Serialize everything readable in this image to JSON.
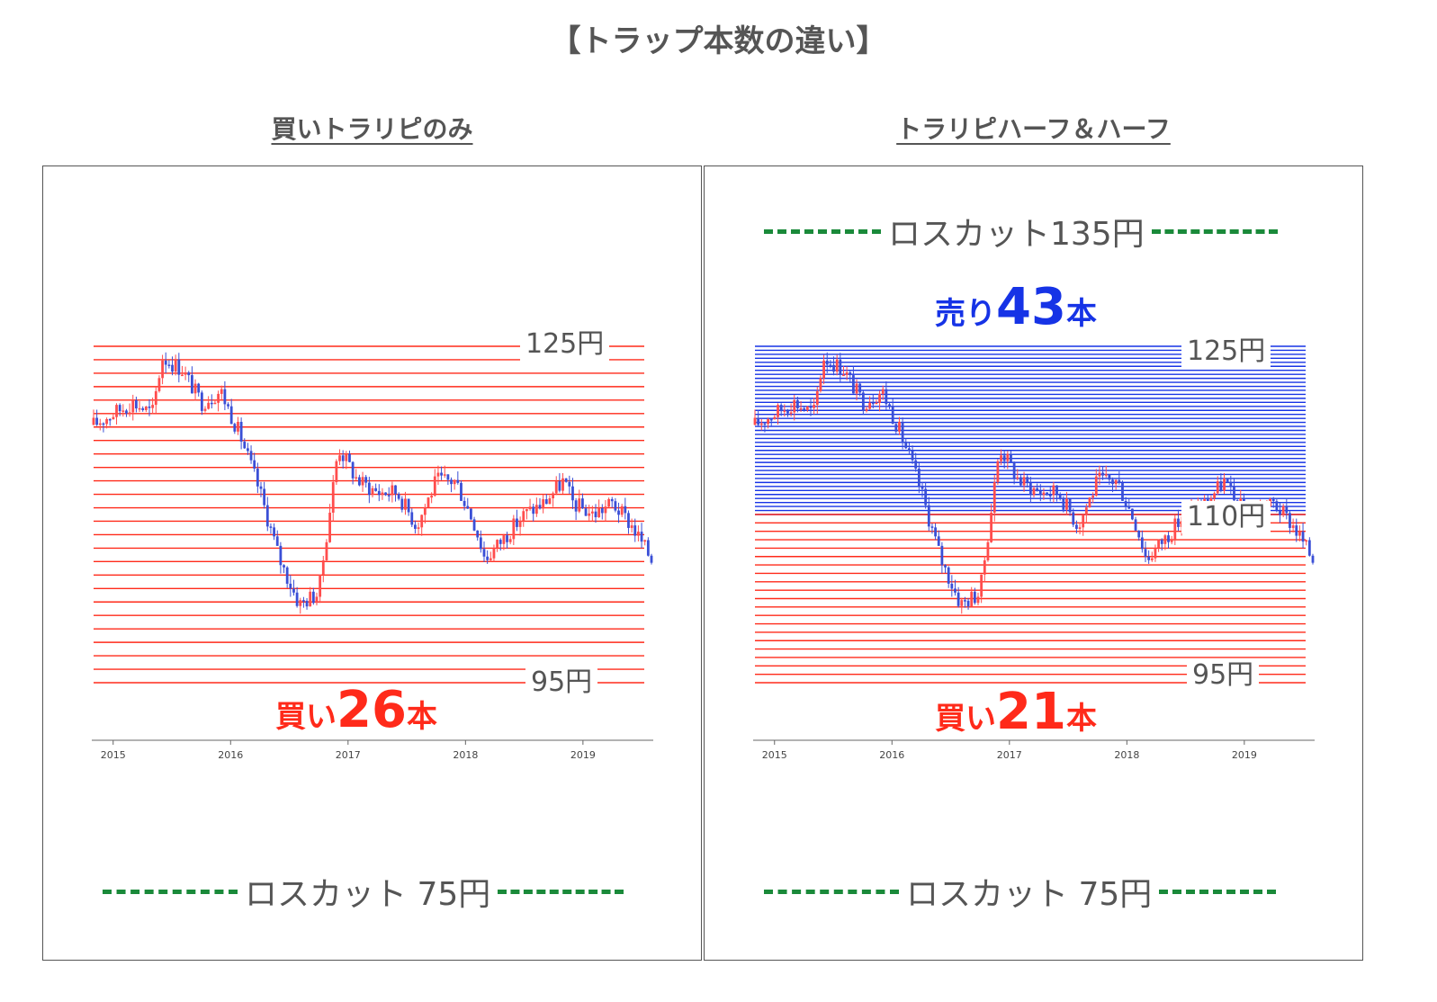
{
  "title": "【トラップ本数の違い】",
  "colors": {
    "buy": "#ff2a1a",
    "sell": "#1633e6",
    "losscut": "#1a8a3a",
    "price_up": "#ff4d4d",
    "price_down": "#3a4fd6"
  },
  "panels": [
    {
      "title": "買いトラリピのみ",
      "price_label_high": "125円",
      "price_label_low": "95円",
      "buy_count_prefix": "買い",
      "buy_count_number": "26",
      "buy_count_suffix": "本",
      "losscut_bottom": "ロスカット 75円"
    },
    {
      "title": "トラリピハーフ＆ハーフ",
      "losscut_top": "ロスカット135円",
      "sell_count_prefix": "売り",
      "sell_count_number": "43",
      "sell_count_suffix": "本",
      "price_label_high": "125円",
      "price_label_mid": "110円",
      "price_label_low": "95円",
      "buy_count_prefix": "買い",
      "buy_count_number": "21",
      "buy_count_suffix": "本",
      "losscut_bottom": "ロスカット 75円"
    }
  ],
  "chart_data": [
    {
      "type": "line",
      "x_tick_labels": [
        "2015",
        "2016",
        "2017",
        "2018",
        "2019"
      ],
      "buy_trap_lines": 26,
      "buy_range": [
        95,
        125
      ],
      "series": [
        {
          "x": [
            "2014-11",
            "2015-01",
            "2015-03",
            "2015-05",
            "2015-06",
            "2015-08",
            "2015-10",
            "2015-12",
            "2016-02",
            "2016-04",
            "2016-06",
            "2016-08",
            "2016-10",
            "2016-12",
            "2017-02",
            "2017-04",
            "2017-06",
            "2017-08",
            "2017-10",
            "2017-12",
            "2018-02",
            "2018-03",
            "2018-05",
            "2018-07",
            "2018-09",
            "2018-11",
            "2018-12",
            "2019-02",
            "2019-04",
            "2019-06",
            "2019-08"
          ],
          "values": [
            118,
            119,
            120,
            119,
            124,
            123,
            120,
            121,
            117,
            112,
            106,
            102,
            103,
            116,
            113,
            112,
            112,
            109,
            113,
            113,
            109,
            106,
            108,
            110,
            111,
            113,
            111,
            110,
            111,
            109,
            106
          ]
        }
      ]
    },
    {
      "type": "line",
      "x_tick_labels": [
        "2015",
        "2016",
        "2017",
        "2018",
        "2019"
      ],
      "sell_trap_lines": 43,
      "sell_range": [
        110,
        125
      ],
      "buy_trap_lines": 21,
      "buy_range": [
        95,
        110
      ],
      "series": [
        {
          "x": [
            "2014-11",
            "2015-01",
            "2015-03",
            "2015-05",
            "2015-06",
            "2015-08",
            "2015-10",
            "2015-12",
            "2016-02",
            "2016-04",
            "2016-06",
            "2016-08",
            "2016-10",
            "2016-12",
            "2017-02",
            "2017-04",
            "2017-06",
            "2017-08",
            "2017-10",
            "2017-12",
            "2018-02",
            "2018-03",
            "2018-05",
            "2018-07",
            "2018-09",
            "2018-11",
            "2018-12",
            "2019-02",
            "2019-04",
            "2019-06",
            "2019-08"
          ],
          "values": [
            118,
            119,
            120,
            119,
            124,
            123,
            120,
            121,
            117,
            112,
            106,
            102,
            103,
            116,
            113,
            112,
            112,
            109,
            113,
            113,
            109,
            106,
            108,
            110,
            111,
            113,
            111,
            110,
            111,
            109,
            106
          ]
        }
      ]
    }
  ]
}
